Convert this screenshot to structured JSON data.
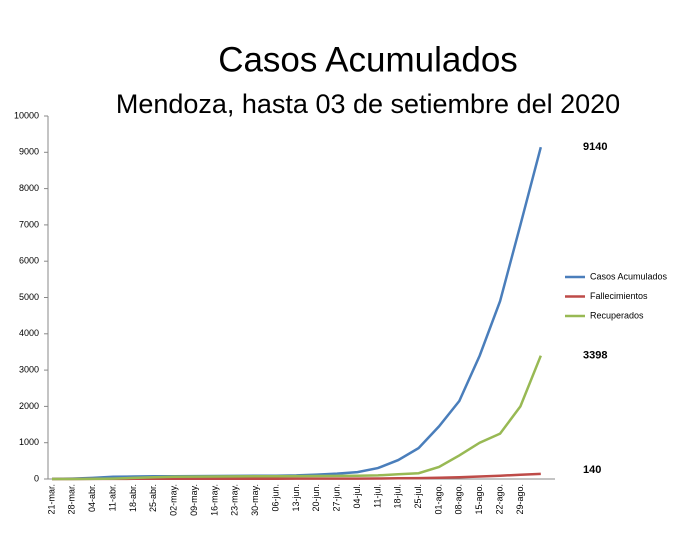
{
  "chart_data": {
    "type": "line",
    "title": "Casos Acumulados",
    "subtitle": "Mendoza, hasta 03 de setiembre del 2020",
    "categories": [
      "21-mar.",
      "28-mar.",
      "04-abr.",
      "11-abr.",
      "18-abr.",
      "25-abr.",
      "02-may.",
      "09-may.",
      "16-may.",
      "23-may.",
      "30-may.",
      "06-jun.",
      "13-jun.",
      "20-jun.",
      "27-jun.",
      "04-jul.",
      "11-jul.",
      "18-jul.",
      "25-jul.",
      "01-ago.",
      "08-ago.",
      "15-ago.",
      "22-ago.",
      "29-ago.",
      null
    ],
    "series": [
      {
        "name": "Casos Acumulados",
        "color": "#4a7ebb",
        "values": [
          2,
          10,
          30,
          60,
          70,
          75,
          78,
          80,
          82,
          85,
          88,
          92,
          100,
          120,
          150,
          190,
          300,
          520,
          850,
          1450,
          2150,
          3400,
          4900,
          7000,
          9140
        ]
      },
      {
        "name": "Fallecimientos",
        "color": "#be4b48",
        "values": [
          0,
          0,
          2,
          4,
          5,
          6,
          7,
          8,
          8,
          9,
          9,
          9,
          10,
          10,
          11,
          12,
          14,
          18,
          24,
          35,
          50,
          70,
          90,
          115,
          140
        ]
      },
      {
        "name": "Recuperados",
        "color": "#98b954",
        "values": [
          0,
          0,
          2,
          10,
          30,
          50,
          60,
          65,
          70,
          72,
          75,
          78,
          80,
          82,
          85,
          90,
          100,
          130,
          160,
          330,
          650,
          1000,
          1250,
          2000,
          3398
        ]
      }
    ],
    "ylim": [
      0,
      10000
    ],
    "yticks": [
      0,
      1000,
      2000,
      3000,
      4000,
      5000,
      6000,
      7000,
      8000,
      9000,
      10000
    ],
    "grid": false,
    "legend": "right"
  }
}
